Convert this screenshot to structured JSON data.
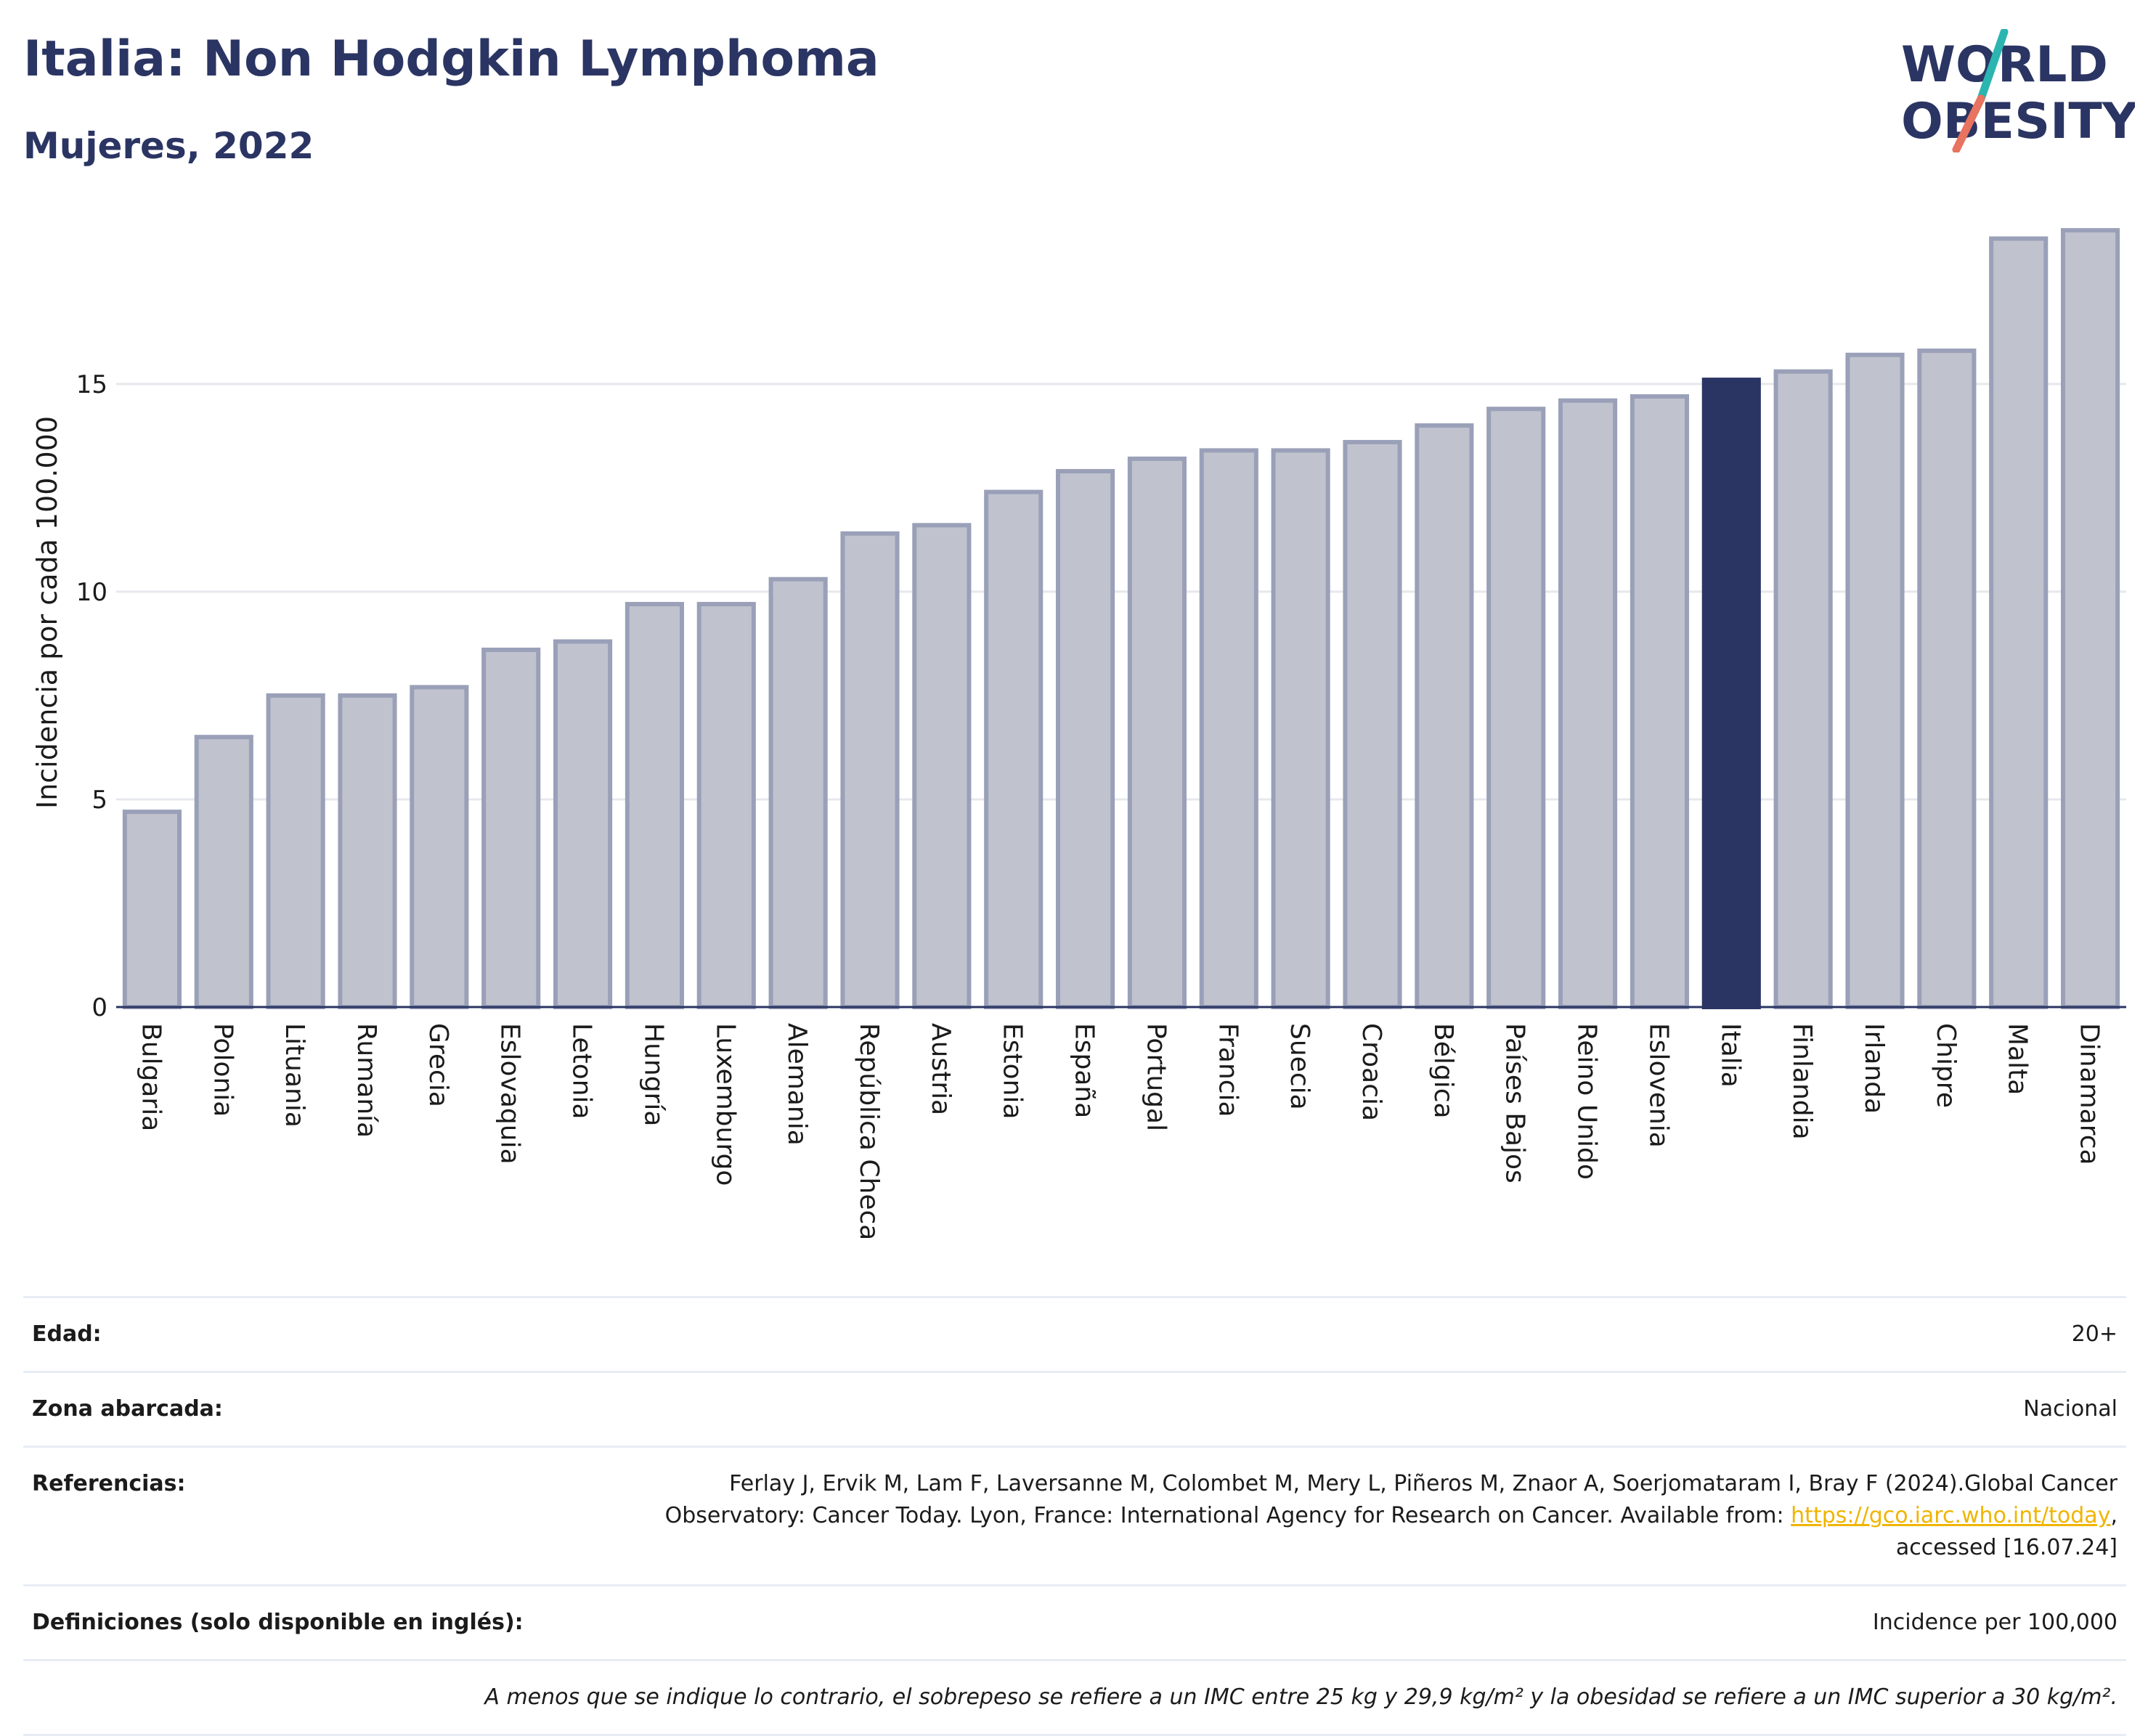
{
  "header": {
    "title": "Italia: Non Hodgkin Lymphoma",
    "subtitle": "Mujeres, 2022",
    "logo": {
      "line1": "WORLD",
      "line2": "OBESITY",
      "colors": {
        "text": "#2b3563",
        "teal": "#2bb5b0",
        "coral": "#e8735f"
      }
    }
  },
  "chart_data": {
    "type": "bar",
    "ylabel": "Incidencia por cada 100.000",
    "ylim": [
      0,
      19
    ],
    "yticks": [
      0,
      5,
      10,
      15
    ],
    "grid": true,
    "highlight": "Italia",
    "colors": {
      "bar": "#c0c3ce",
      "bar_edge": "#9aa0b8",
      "highlight": "#2b3563",
      "grid": "#e6e8ee",
      "axis": "#2b3563"
    },
    "categories": [
      "Bulgaria",
      "Polonia",
      "Lituania",
      "Rumanía",
      "Grecia",
      "Eslovaquia",
      "Letonia",
      "Hungría",
      "Luxemburgo",
      "Alemania",
      "República Checa",
      "Austria",
      "Estonia",
      "España",
      "Portugal",
      "Francia",
      "Suecia",
      "Croacia",
      "Bélgica",
      "Países Bajos",
      "Reino Unido",
      "Eslovenia",
      "Italia",
      "Finlandia",
      "Irlanda",
      "Chipre",
      "Malta",
      "Dinamarca"
    ],
    "values": [
      4.7,
      6.5,
      7.5,
      7.5,
      7.7,
      8.6,
      8.8,
      9.7,
      9.7,
      10.3,
      11.4,
      11.6,
      12.4,
      12.9,
      13.2,
      13.4,
      13.4,
      13.6,
      14.0,
      14.4,
      14.6,
      14.7,
      15.1,
      15.3,
      15.7,
      15.8,
      18.5,
      18.7
    ]
  },
  "meta": {
    "age_label": "Edad:",
    "age_value": "20+",
    "area_label": "Zona abarcada:",
    "area_value": "Nacional",
    "ref_label": "Referencias:",
    "ref_text_1": "Ferlay J, Ervik M, Lam F, Laversanne M, Colombet M, Mery L, Piñeros M, Znaor A, Soerjomataram I, Bray F (2024).Global Cancer",
    "ref_text_2": "Observatory: Cancer Today. Lyon, France: International Agency for Research on Cancer. Available from: ",
    "ref_link": "https://gco.iarc.who.int/today",
    "ref_text_3": ",",
    "ref_text_4": "accessed [16.07.24]",
    "def_label": "Definiciones (solo disponible en inglés):",
    "def_value": "Incidence per 100,000",
    "note": "A menos que se indique lo contrario, el sobrepeso se refiere a un IMC entre 25 kg y 29,9 kg/m² y la obesidad se refiere a un IMC superior a 30 kg/m²."
  }
}
